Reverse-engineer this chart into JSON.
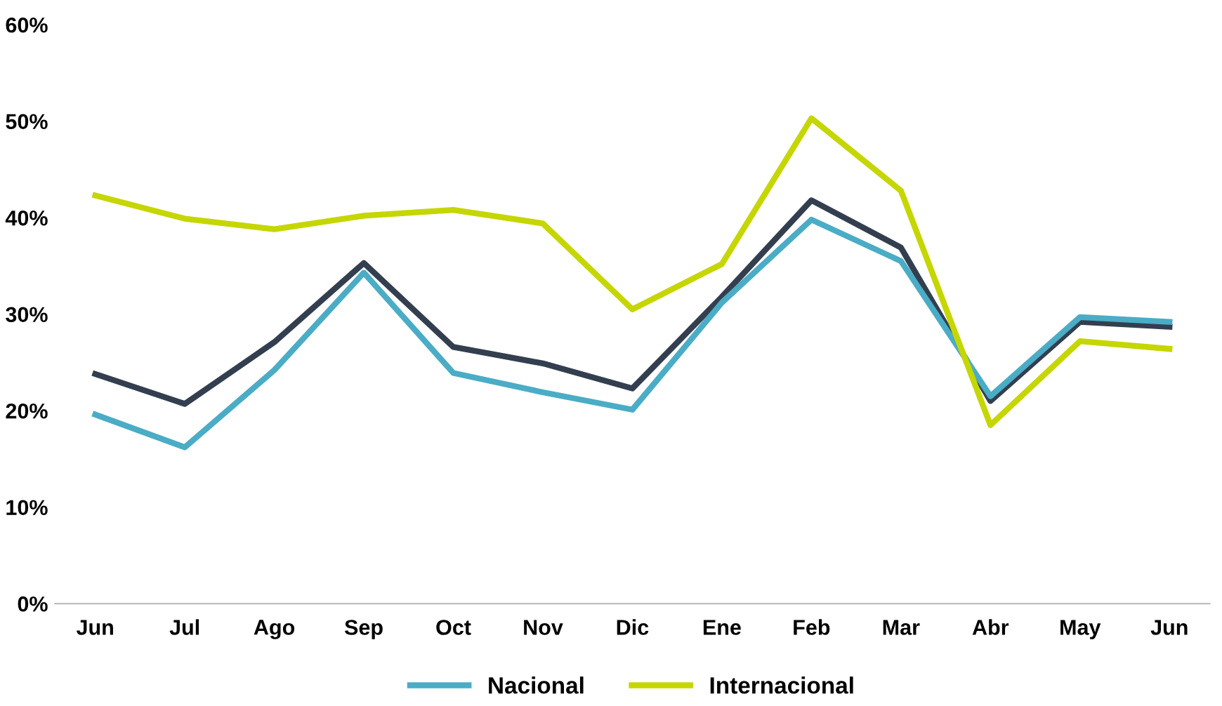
{
  "chart_data": {
    "type": "line",
    "categories": [
      "Jun",
      "Jul",
      "Ago",
      "Sep",
      "Oct",
      "Nov",
      "Dic",
      "Ene",
      "Feb",
      "Mar",
      "Abr",
      "May",
      "Jun"
    ],
    "series": [
      {
        "color": "#333f4f",
        "values": [
          23.8,
          20.7,
          27.1,
          35.3,
          26.6,
          24.9,
          22.3,
          31.8,
          41.8,
          36.9,
          21.0,
          29.2,
          28.7
        ]
      },
      {
        "name": "Nacional",
        "color": "#4bacc6",
        "values": [
          19.6,
          16.2,
          24.2,
          34.3,
          23.9,
          21.9,
          20.1,
          31.2,
          39.8,
          35.5,
          21.5,
          29.7,
          29.2
        ]
      },
      {
        "name": "Internacional",
        "color": "#c5d600",
        "values": [
          42.3,
          39.9,
          38.8,
          40.2,
          40.8,
          39.4,
          30.5,
          35.2,
          50.3,
          42.8,
          18.5,
          27.2,
          26.4
        ]
      }
    ],
    "ylim": [
      0,
      60
    ],
    "yticks": [
      {
        "value": 0,
        "label": "0%"
      },
      {
        "value": 10,
        "label": "10%"
      },
      {
        "value": 20,
        "label": "20%"
      },
      {
        "value": 30,
        "label": "30%"
      },
      {
        "value": 40,
        "label": "40%"
      },
      {
        "value": 50,
        "label": "50%"
      },
      {
        "value": 60,
        "label": "60%"
      }
    ],
    "grid": false,
    "legend": "bottom",
    "marker": "none",
    "line_style": "solid"
  }
}
